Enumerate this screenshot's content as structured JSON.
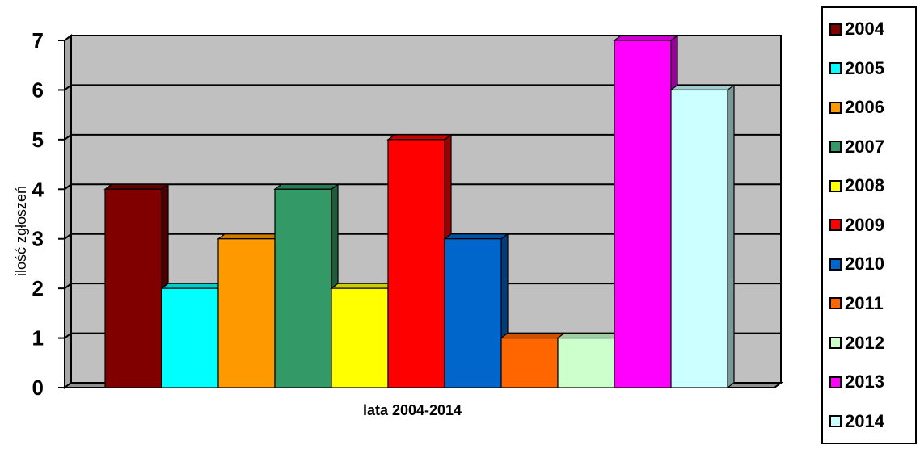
{
  "chart_data": {
    "type": "bar",
    "title": "",
    "xlabel": "lata 2004-2014",
    "ylabel": "ilość zgłoszeń",
    "ylim": [
      0,
      7
    ],
    "yticks": [
      "0",
      "1",
      "2",
      "3",
      "4",
      "5",
      "6",
      "7"
    ],
    "grid": true,
    "legend_position": "right",
    "plot_background": "#c0c0c0",
    "series": [
      {
        "name": "2004",
        "value": 4,
        "color": "#800000"
      },
      {
        "name": "2005",
        "value": 2,
        "color": "#00ffff"
      },
      {
        "name": "2006",
        "value": 3,
        "color": "#ff9900"
      },
      {
        "name": "2007",
        "value": 4,
        "color": "#339966"
      },
      {
        "name": "2008",
        "value": 2,
        "color": "#ffff00"
      },
      {
        "name": "2009",
        "value": 5,
        "color": "#ff0000"
      },
      {
        "name": "2010",
        "value": 3,
        "color": "#0066cc"
      },
      {
        "name": "2011",
        "value": 1,
        "color": "#ff6600"
      },
      {
        "name": "2012",
        "value": 1,
        "color": "#ccffcc"
      },
      {
        "name": "2013",
        "value": 7,
        "color": "#ff00ff"
      },
      {
        "name": "2014",
        "value": 6,
        "color": "#ccffff"
      }
    ]
  }
}
